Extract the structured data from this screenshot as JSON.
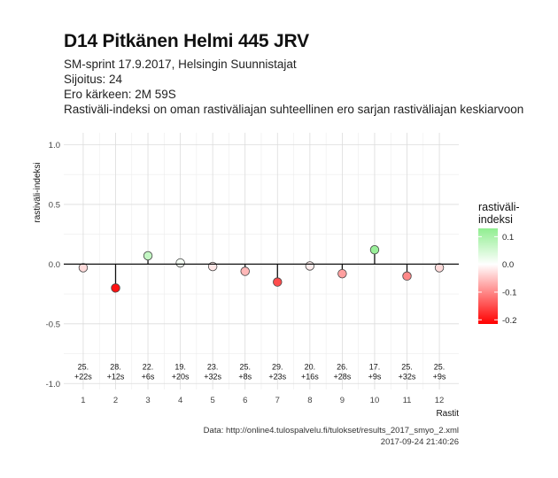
{
  "header": {
    "title": "D14 Pitkänen Helmi 445 JRV",
    "subtitle_lines": [
      "SM-sprint 17.9.2017, Helsingin Suunnistajat",
      "Sijoitus: 24",
      "Ero kärkeen: 2M 59S",
      "Rastiväli-indeksi on oman rastiväliajan suhteellinen ero sarjan rastiväliajan keskiarvoon"
    ]
  },
  "caption": {
    "source": "Data: http://online4.tulospalvelu.fi/tulokset/results_2017_smyo_2.xml",
    "timestamp": "2017-09-24 21:40:26"
  },
  "chart_data": {
    "type": "scatter",
    "style": "lollipop",
    "xlabel": "Rastit",
    "ylabel": "rastiväli-indeksi",
    "x": [
      1,
      2,
      3,
      4,
      5,
      6,
      7,
      8,
      9,
      10,
      11,
      12
    ],
    "values": [
      -0.03,
      -0.2,
      0.07,
      0.01,
      -0.02,
      -0.06,
      -0.15,
      -0.015,
      -0.08,
      0.12,
      -0.1,
      -0.03
    ],
    "point_labels": [
      [
        "25.",
        "+22s"
      ],
      [
        "28.",
        "+12s"
      ],
      [
        "22.",
        "+6s"
      ],
      [
        "19.",
        "+20s"
      ],
      [
        "23.",
        "+32s"
      ],
      [
        "25.",
        "+8s"
      ],
      [
        "29.",
        "+23s"
      ],
      [
        "20.",
        "+16s"
      ],
      [
        "26.",
        "+28s"
      ],
      [
        "17.",
        "+9s"
      ],
      [
        "25.",
        "+32s"
      ],
      [
        "25.",
        "+9s"
      ]
    ],
    "label_y": -0.92,
    "ylim": [
      -1.05,
      1.1
    ],
    "xlim": [
      0.4,
      12.6
    ],
    "yticks": [
      1.0,
      0.5,
      0.0,
      -0.5,
      -1.0
    ],
    "ytick_labels": [
      "1.0",
      "0.5",
      "0.0",
      "-0.5",
      "-1.0"
    ],
    "xticks": [
      1,
      2,
      3,
      4,
      5,
      6,
      7,
      8,
      9,
      10,
      11,
      12
    ],
    "grid": true,
    "legend": {
      "title": "rastiväli-\nindeksi",
      "position": "right",
      "ticks": [
        0.1,
        0.0,
        -0.1,
        -0.2
      ],
      "tick_labels": [
        "0.1",
        "0.0",
        "-0.1",
        "-0.2"
      ],
      "range": [
        -0.215,
        0.13
      ],
      "colors": {
        "high": "#90ee90",
        "mid": "#ffffff",
        "low": "#ff0000"
      }
    }
  }
}
